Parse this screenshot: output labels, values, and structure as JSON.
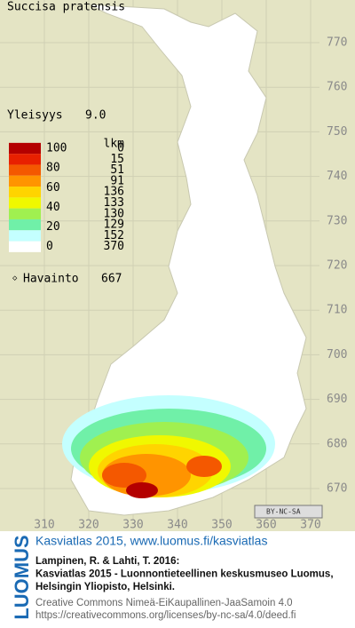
{
  "title": "Succisa pratensis",
  "frequency": {
    "label": "Yleisyys",
    "value": "9.0"
  },
  "legend": {
    "count_header": "lkm",
    "scale_labels": [
      "100",
      "80",
      "60",
      "40",
      "20",
      "0"
    ],
    "classes": [
      {
        "color": "#b40000",
        "count": 0
      },
      {
        "color": "#e82000",
        "count": 15
      },
      {
        "color": "#f45800",
        "count": 51
      },
      {
        "color": "#ff9400",
        "count": 91
      },
      {
        "color": "#ffd400",
        "count": 136
      },
      {
        "color": "#f0f800",
        "count": 133
      },
      {
        "color": "#a0f050",
        "count": 130
      },
      {
        "color": "#70f0a8",
        "count": 129
      },
      {
        "color": "#c4ffff",
        "count": 152
      },
      {
        "color": "#ffffff",
        "count": 370
      }
    ]
  },
  "observation": {
    "label": "Havainto",
    "count": 667
  },
  "axes": {
    "northing": [
      770,
      760,
      750,
      740,
      730,
      720,
      710,
      700,
      690,
      680,
      670
    ],
    "easting": [
      310,
      320,
      330,
      340,
      350,
      360,
      370
    ]
  },
  "badge": "BY-NC-SA",
  "footer": {
    "logo": "LUOMUS",
    "headline": "Kasviatlas 2015, www.luomus.fi/kasviatlas",
    "citation": [
      "Lampinen, R. & Lahti, T. 2016:",
      "Kasviatlas 2015 - Luonnontieteellinen keskusmuseo Luomus,",
      "Helsingin Yliopisto, Helsinki."
    ],
    "license": [
      "Creative Commons Nimeä-EiKaupallinen-JaaSamoin 4.0",
      "https://creativecommons.org/licenses/by-nc-sa/4.0/deed.fi"
    ]
  }
}
